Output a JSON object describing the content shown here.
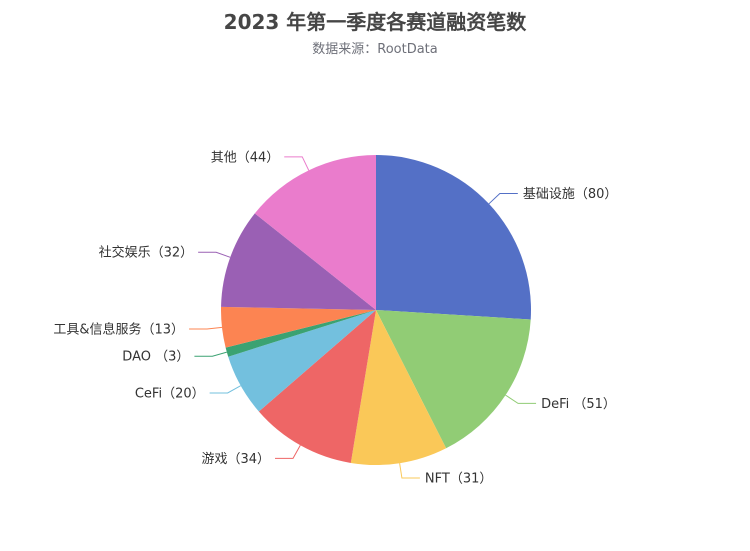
{
  "chart_data": {
    "type": "pie",
    "title": "2023 年第一季度各赛道融资笔数",
    "subtitle": "数据来源：RootData",
    "categories": [
      "基础设施",
      "DeFi",
      "NFT",
      "游戏",
      "CeFi",
      "DAO",
      "工具&信息服务",
      "社交娱乐",
      "其他"
    ],
    "values": [
      80,
      51,
      31,
      34,
      20,
      3,
      13,
      32,
      44
    ],
    "labels": [
      "基础设施（80）",
      "DeFi （51）",
      "NFT（31）",
      "游戏（34）",
      "CeFi（20）",
      "DAO （3）",
      "工具&信息服务（13）",
      "社交娱乐（32）",
      "其他（44）"
    ],
    "colors": [
      "#5470c6",
      "#91cc75",
      "#fac858",
      "#ee6666",
      "#73c0de",
      "#3ba272",
      "#fc8452",
      "#9a60b4",
      "#ea7ccc"
    ],
    "legend": "none",
    "start_angle": 90,
    "direction": "clockwise"
  }
}
